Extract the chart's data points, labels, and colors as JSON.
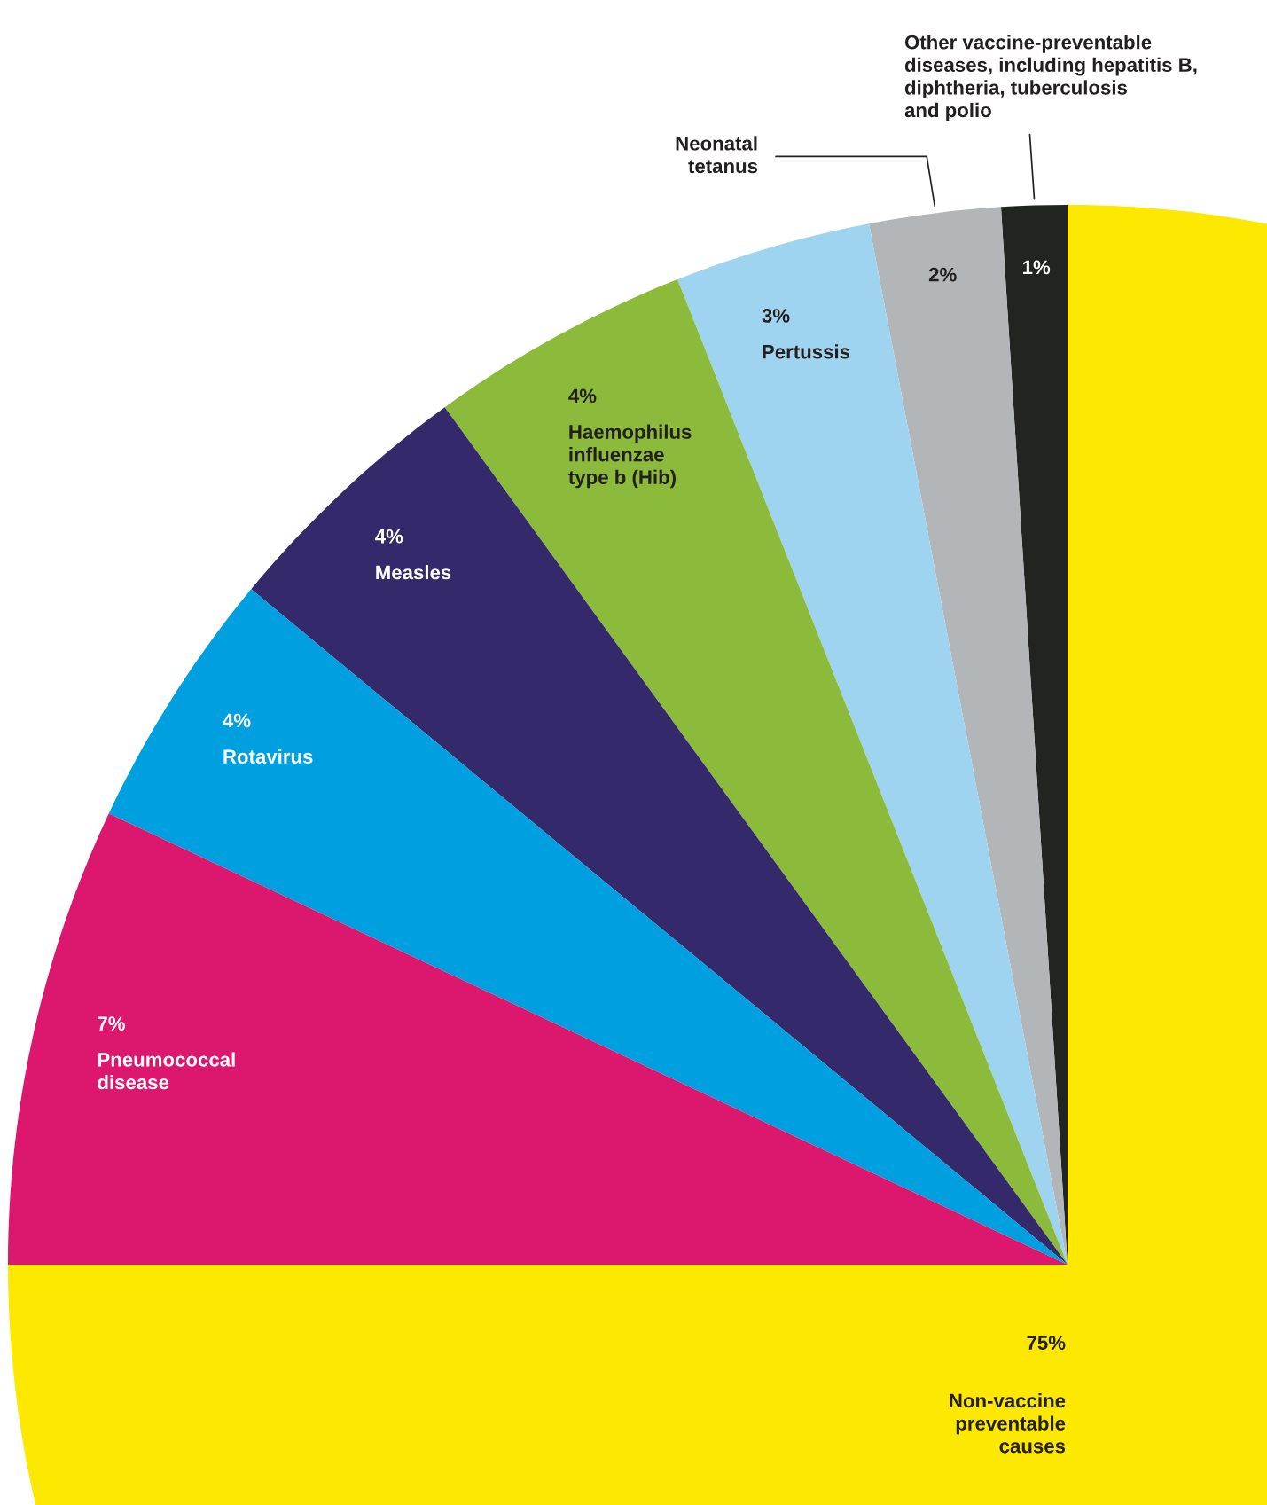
{
  "chart_data": {
    "type": "pie",
    "categories": [
      "Other vaccine-preventable\ndiseases, including hepatitis B,\ndiphtheria, tuberculosis\nand polio",
      "Neonatal\ntetanus",
      "Pertussis",
      "Haemophilus\ninfluenzae\ntype b (Hib)",
      "Measles",
      "Rotavirus",
      "Pneumococcal\ndisease",
      "Non-vaccine\npreventable\ncauses"
    ],
    "values": [
      1,
      2,
      3,
      4,
      4,
      4,
      7,
      75
    ],
    "value_labels": [
      "1%",
      "2%",
      "3%",
      "4%",
      "4%",
      "4%",
      "7%",
      "75%"
    ],
    "colors": [
      "#222422",
      "#b2b6b8",
      "#9fd4f0",
      "#8cbb3b",
      "#33296b",
      "#00a0e0",
      "#dc186e",
      "#fce800"
    ]
  }
}
